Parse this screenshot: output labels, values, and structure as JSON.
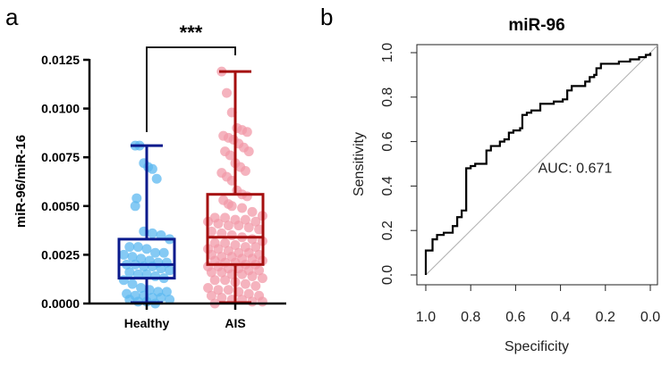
{
  "panel_labels": {
    "a": "a",
    "b": "b"
  },
  "colors": {
    "healthy_box": "#0a1a8c",
    "healthy_points": "#5cb8f0",
    "ais_box": "#a50f0f",
    "ais_points": "#f19aa8",
    "roc_line": "#000000",
    "diagonal": "#b0b0b0"
  },
  "chart_data": [
    {
      "type": "box-scatter",
      "title": "",
      "xlabel": "",
      "ylabel": "miR-96/miR-16",
      "ylim": [
        0,
        0.0125
      ],
      "yticks": [
        "0.0000",
        "0.0025",
        "0.0050",
        "0.0075",
        "0.0100",
        "0.0125"
      ],
      "ytick_values": [
        0,
        0.0025,
        0.005,
        0.0075,
        0.01,
        0.0125
      ],
      "categories": [
        "Healthy",
        "AIS"
      ],
      "significance": "***",
      "groups": [
        {
          "name": "Healthy",
          "whisker": [
            0.0,
            0.0081
          ],
          "q1": 0.0013,
          "median": 0.002,
          "q3": 0.0033,
          "points": [
            0.0081,
            0.0081,
            0.0072,
            0.007,
            0.0069,
            0.0064,
            0.0054,
            0.005,
            0.0037,
            0.0036,
            0.0035,
            0.0033,
            0.0029,
            0.0029,
            0.0028,
            0.0026,
            0.0026,
            0.0025,
            0.0024,
            0.0023,
            0.0022,
            0.0021,
            0.0021,
            0.002,
            0.002,
            0.0019,
            0.0019,
            0.0018,
            0.0017,
            0.0016,
            0.0015,
            0.0015,
            0.0014,
            0.0013,
            0.0012,
            0.001,
            0.0008,
            0.0007,
            0.0006,
            0.0006,
            0.0005,
            0.0004,
            0.0004,
            0.0003,
            0.0003,
            0.0002,
            0.0002,
            0.0001,
            0.0001,
            0.0
          ]
        },
        {
          "name": "AIS",
          "whisker": [
            0.0,
            0.0119
          ],
          "q1": 0.002,
          "median": 0.0034,
          "q3": 0.0056,
          "points": [
            0.0119,
            0.0108,
            0.0098,
            0.009,
            0.0089,
            0.0088,
            0.0086,
            0.0085,
            0.0084,
            0.0082,
            0.008,
            0.0078,
            0.0078,
            0.0076,
            0.0072,
            0.007,
            0.0068,
            0.0067,
            0.0065,
            0.0063,
            0.0058,
            0.0056,
            0.0055,
            0.0053,
            0.0051,
            0.005,
            0.0049,
            0.0047,
            0.0045,
            0.0044,
            0.0044,
            0.0043,
            0.0043,
            0.0042,
            0.0042,
            0.0041,
            0.004,
            0.004,
            0.0039,
            0.0038,
            0.0037,
            0.0036,
            0.0035,
            0.0034,
            0.0033,
            0.0032,
            0.0031,
            0.0031,
            0.003,
            0.0029,
            0.0029,
            0.0028,
            0.0028,
            0.0027,
            0.0026,
            0.0026,
            0.0025,
            0.0025,
            0.0024,
            0.0024,
            0.0023,
            0.0023,
            0.0022,
            0.0022,
            0.0021,
            0.0021,
            0.002,
            0.002,
            0.0019,
            0.0019,
            0.0018,
            0.0018,
            0.0017,
            0.0017,
            0.0016,
            0.0016,
            0.0015,
            0.0015,
            0.0014,
            0.0013,
            0.0012,
            0.0012,
            0.0011,
            0.001,
            0.0009,
            0.0008,
            0.0007,
            0.0007,
            0.0006,
            0.0005,
            0.0004,
            0.0004,
            0.0003,
            0.0002,
            0.0002,
            0.0001,
            0.0001,
            0.0
          ]
        }
      ]
    },
    {
      "type": "line",
      "title": "miR-96",
      "xlabel": "Specificity",
      "ylabel": "Sensitivity",
      "xlim": [
        1.0,
        0.0
      ],
      "ylim": [
        0.0,
        1.0
      ],
      "xticks": [
        "1.0",
        "0.8",
        "0.6",
        "0.4",
        "0.2",
        "0.0"
      ],
      "xtick_values": [
        1.0,
        0.8,
        0.6,
        0.4,
        0.2,
        0.0
      ],
      "yticks": [
        "0.0",
        "0.2",
        "0.4",
        "0.6",
        "0.8",
        "1.0"
      ],
      "ytick_values": [
        0.0,
        0.2,
        0.4,
        0.6,
        0.8,
        1.0
      ],
      "annotation": "AUC: 0.671",
      "annotation_at": [
        0.5,
        0.46
      ],
      "series": [
        {
          "name": "ROC",
          "points": [
            [
              1,
              0
            ],
            [
              1,
              0.11
            ],
            [
              0.97,
              0.11
            ],
            [
              0.97,
              0.16
            ],
            [
              0.95,
              0.16
            ],
            [
              0.95,
              0.18
            ],
            [
              0.92,
              0.18
            ],
            [
              0.92,
              0.19
            ],
            [
              0.88,
              0.19
            ],
            [
              0.88,
              0.22
            ],
            [
              0.86,
              0.22
            ],
            [
              0.86,
              0.26
            ],
            [
              0.84,
              0.26
            ],
            [
              0.84,
              0.29
            ],
            [
              0.82,
              0.29
            ],
            [
              0.82,
              0.48
            ],
            [
              0.8,
              0.48
            ],
            [
              0.8,
              0.49
            ],
            [
              0.78,
              0.49
            ],
            [
              0.78,
              0.5
            ],
            [
              0.73,
              0.5
            ],
            [
              0.73,
              0.56
            ],
            [
              0.71,
              0.56
            ],
            [
              0.71,
              0.58
            ],
            [
              0.67,
              0.58
            ],
            [
              0.67,
              0.6
            ],
            [
              0.65,
              0.6
            ],
            [
              0.65,
              0.61
            ],
            [
              0.63,
              0.61
            ],
            [
              0.63,
              0.64
            ],
            [
              0.61,
              0.64
            ],
            [
              0.61,
              0.65
            ],
            [
              0.58,
              0.65
            ],
            [
              0.58,
              0.66
            ],
            [
              0.57,
              0.66
            ],
            [
              0.57,
              0.72
            ],
            [
              0.55,
              0.72
            ],
            [
              0.55,
              0.73
            ],
            [
              0.53,
              0.73
            ],
            [
              0.53,
              0.74
            ],
            [
              0.49,
              0.74
            ],
            [
              0.49,
              0.77
            ],
            [
              0.43,
              0.77
            ],
            [
              0.43,
              0.78
            ],
            [
              0.39,
              0.78
            ],
            [
              0.39,
              0.79
            ],
            [
              0.37,
              0.79
            ],
            [
              0.37,
              0.83
            ],
            [
              0.35,
              0.83
            ],
            [
              0.35,
              0.85
            ],
            [
              0.29,
              0.85
            ],
            [
              0.29,
              0.87
            ],
            [
              0.27,
              0.87
            ],
            [
              0.27,
              0.89
            ],
            [
              0.25,
              0.89
            ],
            [
              0.25,
              0.9
            ],
            [
              0.24,
              0.9
            ],
            [
              0.24,
              0.93
            ],
            [
              0.22,
              0.93
            ],
            [
              0.22,
              0.95
            ],
            [
              0.14,
              0.95
            ],
            [
              0.14,
              0.96
            ],
            [
              0.09,
              0.96
            ],
            [
              0.09,
              0.97
            ],
            [
              0.05,
              0.97
            ],
            [
              0.05,
              0.98
            ],
            [
              0.02,
              0.98
            ],
            [
              0.02,
              0.99
            ],
            [
              0,
              0.99
            ],
            [
              0,
              1
            ]
          ]
        },
        {
          "name": "reference",
          "points": [
            [
              1,
              0
            ],
            [
              0,
              1
            ]
          ]
        }
      ]
    }
  ]
}
